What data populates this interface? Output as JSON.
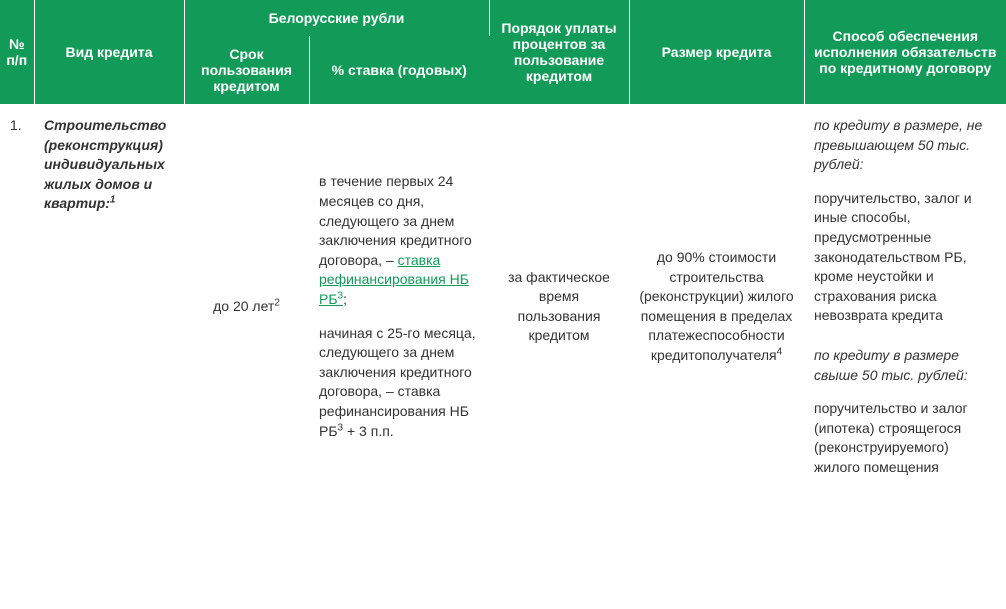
{
  "header": {
    "num": "№ п/п",
    "type": "Вид кредита",
    "group_byn": "Белорусские рубли",
    "term": "Срок пользования кредитом",
    "rate": "% ставка (годовых)",
    "order": "Порядок уплаты процентов за пользование кредитом",
    "size": "Размер кредита",
    "security": "Способ обеспечения исполнения обязательств по кредитному договору"
  },
  "row1": {
    "num": "1.",
    "type_text": "Строительство (реконструкция) индивидуальных жилых домов и квартир:",
    "type_sup": "1",
    "term_text": "до 20 лет",
    "term_sup": "2",
    "rate_part1": "в течение первых 24 месяцев со дня, следующего за днем заключения кредитного договора, – ",
    "rate_link": "ставка рефинансирования НБ РБ",
    "rate_link_sup": "3",
    "rate_part1_tail": ";",
    "rate_part2a": "начиная с 25-го месяца, следующего за днем заключения кредитного договора, – ставка рефинансирования НБ РБ",
    "rate_part2_sup": "3",
    "rate_part2b": " + 3 п.п.",
    "order": "за фактическое время пользования кредитом",
    "size_text": "до 90% стоимости строительства (реконструкции) жилого помещения в пределах платежеспособности кредитополучателя",
    "size_sup": "4",
    "sec1_head": "по кредиту в размере, не превышающем 50 тыс. рублей:",
    "sec1_body": "поручительство, залог и иные способы, предусмотренные законодательством РБ, кроме неустойки и страхования риска невозврата кредита",
    "sec2_head": "по кредиту в размере свыше 50 тыс. рублей:",
    "sec2_body": "поручительство и залог (ипотека) строящегося (реконструируемого) жилого помещения"
  },
  "colors": {
    "header_bg": "#129b58",
    "header_fg": "#ffffff",
    "link": "#129b58",
    "text": "#333333"
  }
}
